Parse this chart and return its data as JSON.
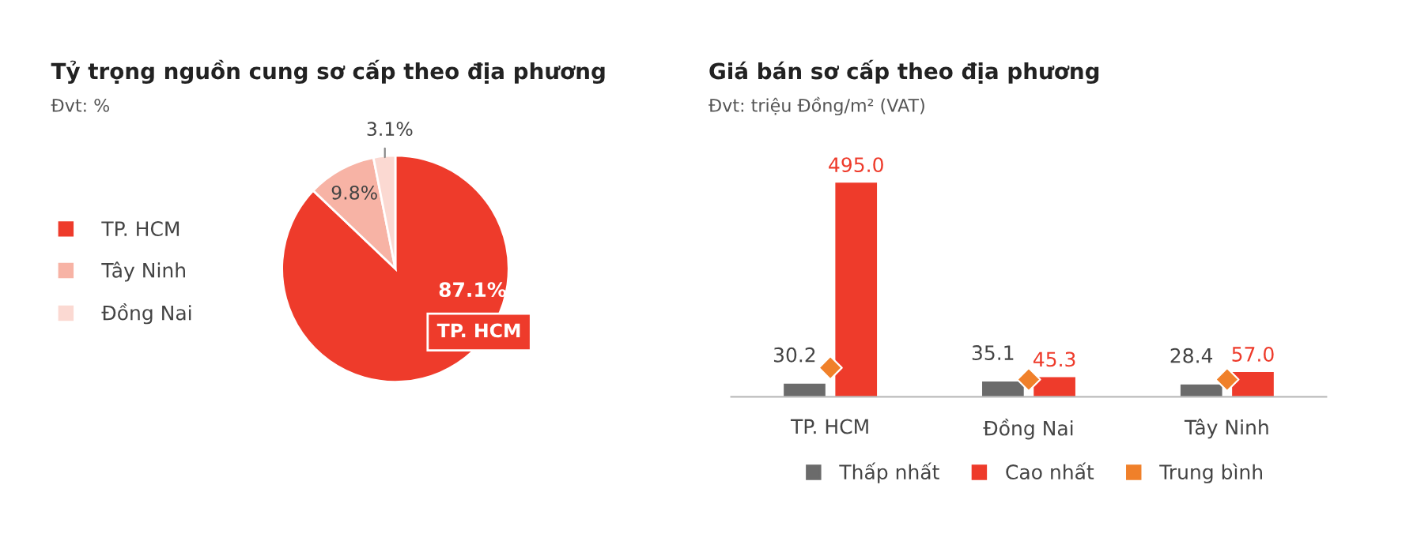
{
  "chart_data": [
    {
      "type": "pie",
      "title": "Tỷ trọng nguồn cung sơ cấp theo địa phương",
      "subtitle": "Đvt: %",
      "categories": [
        "TP. HCM",
        "Tây Ninh",
        "Đồng Nai"
      ],
      "values": [
        87.1,
        9.8,
        3.1
      ],
      "colors": [
        "#ee3b2b",
        "#f7b3a5",
        "#fbd9d2"
      ],
      "value_labels": [
        "87.1%",
        "9.8%",
        "3.1%"
      ],
      "annotations": [
        "TP. HCM"
      ],
      "legend": "left"
    },
    {
      "type": "bar",
      "title": "Giá bán sơ cấp theo địa phương",
      "subtitle": "Đvt: triệu Đồng/m² (VAT)",
      "categories": [
        "TP. HCM",
        "Đồng Nai",
        "Tây Ninh"
      ],
      "series": [
        {
          "name": "Thấp nhất",
          "color": "#6b6b6b",
          "values": [
            30.2,
            35.1,
            28.4
          ],
          "value_labels": [
            "30.2",
            "35.1",
            "28.4"
          ]
        },
        {
          "name": "Cao nhất",
          "color": "#ee3b2b",
          "values": [
            495.0,
            45.3,
            57.0
          ],
          "value_labels": [
            "495.0",
            "45.3",
            "57.0"
          ]
        },
        {
          "name": "Trung bình",
          "color": "#f0802a",
          "type": "scatter",
          "marker": "diamond",
          "values": [
            67,
            40,
            40
          ]
        }
      ],
      "legend": "bottom",
      "grid": false
    }
  ]
}
